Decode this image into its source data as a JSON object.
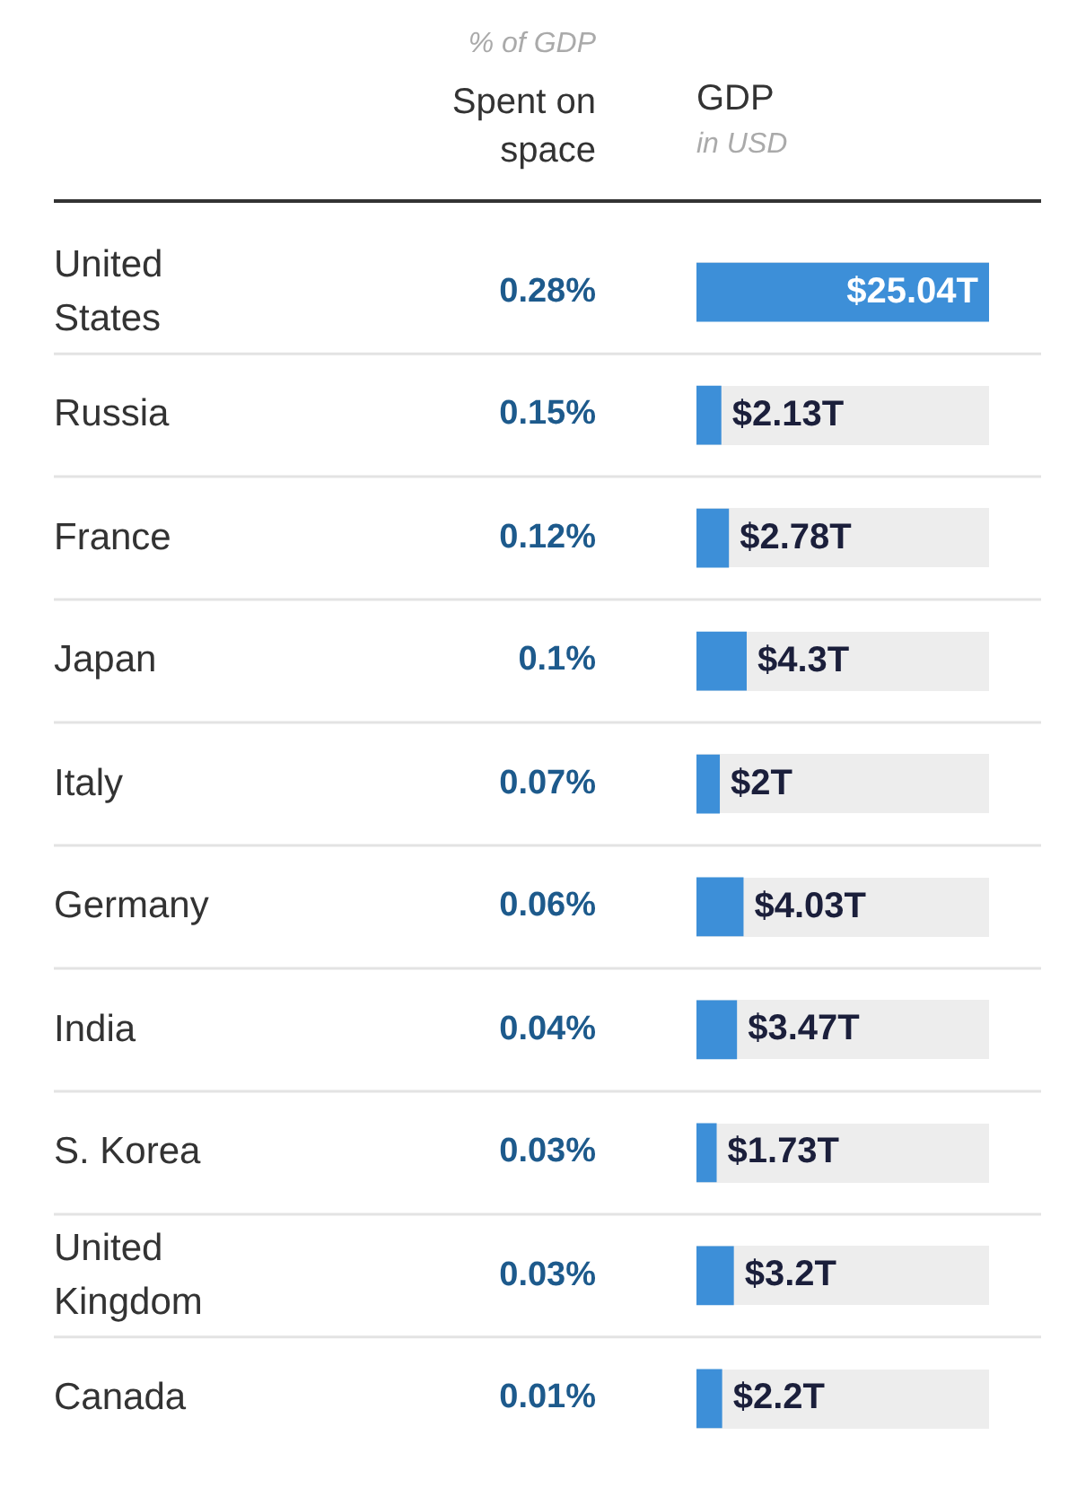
{
  "chart_data": [
    {
      "type": "other",
      "title": "Spent on space",
      "subtitle": "% of GDP",
      "categories": [
        "United States",
        "Russia",
        "France",
        "Japan",
        "Italy",
        "Germany",
        "India",
        "S. Korea",
        "United Kingdom",
        "Canada"
      ],
      "color": "#1d5a8c",
      "values": [
        0.28,
        0.15,
        0.12,
        0.1,
        0.07,
        0.06,
        0.04,
        0.03,
        0.03,
        0.01
      ],
      "value_labels": [
        "0.28%",
        "0.15%",
        "0.12%",
        "0.1%",
        "0.07%",
        "0.06%",
        "0.04%",
        "0.03%",
        "0.03%",
        "0.01%"
      ]
    },
    {
      "type": "bar",
      "orientation": "horizontal",
      "title": "GDP",
      "subtitle": "in USD",
      "color": "#3d8fd8",
      "xlim": [
        0,
        25.04
      ],
      "grid": "y",
      "values": [
        25.04,
        2.13,
        2.78,
        4.3,
        2,
        4.03,
        3.47,
        1.73,
        3.2,
        2.2
      ],
      "value_labels": [
        "$25.04T",
        "$2.13T",
        "$2.78T",
        "$4.3T",
        "$2T",
        "$4.03T",
        "$3.47T",
        "$1.73T",
        "$3.2T",
        "$2.2T"
      ]
    }
  ]
}
